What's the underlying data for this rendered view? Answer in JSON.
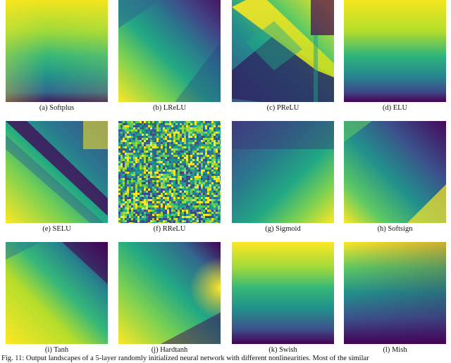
{
  "colors": {
    "viridis_dark": "#440154",
    "viridis_blue": "#3b528b",
    "viridis_teal": "#21918c",
    "viridis_green": "#5ec962",
    "viridis_yellow": "#fde725"
  },
  "panels": [
    {
      "id": "a",
      "caption": "(a) Softplus"
    },
    {
      "id": "b",
      "caption": "(b) LReLU"
    },
    {
      "id": "c",
      "caption": "(c) PReLU"
    },
    {
      "id": "d",
      "caption": "(d) ELU"
    },
    {
      "id": "e",
      "caption": "(e) SELU"
    },
    {
      "id": "f",
      "caption": "(f) RReLU"
    },
    {
      "id": "g",
      "caption": "(g) Sigmoid"
    },
    {
      "id": "h",
      "caption": "(h) Softsign"
    },
    {
      "id": "i",
      "caption": "(i) Tanh"
    },
    {
      "id": "j",
      "caption": "(j) Hardtanh"
    },
    {
      "id": "k",
      "caption": "(k) Swish"
    },
    {
      "id": "l",
      "caption": "(l) Mish"
    }
  ],
  "figure_caption": "Fig. 11: Output landscapes of a 5-layer randomly initialized neural network with different nonlinearities. Most of the similar"
}
